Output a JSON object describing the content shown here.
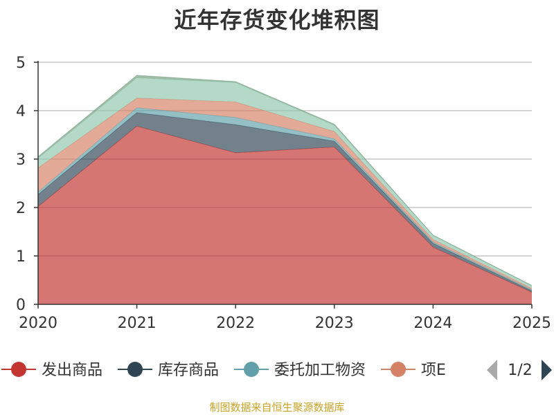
{
  "title": "近年存货变化堆积图",
  "footer": "制图数据来自恒生聚源数据库",
  "legend_page": "1/2",
  "chart_data": {
    "type": "area",
    "stacked": true,
    "title": "近年存货变化堆积图",
    "x": [
      "2020",
      "2021",
      "2022",
      "2023",
      "2024",
      "2025"
    ],
    "ylim": [
      0,
      5
    ],
    "yticks": [
      0,
      1,
      2,
      3,
      4,
      5
    ],
    "grid": true,
    "legend_position": "bottom",
    "series": [
      {
        "name": "发出商品",
        "color": "#c23531",
        "values": [
          2.02,
          3.68,
          3.13,
          3.25,
          1.18,
          0.25
        ]
      },
      {
        "name": "库存商品",
        "color": "#2f4554",
        "values": [
          0.25,
          0.28,
          0.58,
          0.12,
          0.08,
          0.03
        ]
      },
      {
        "name": "委托加工物资",
        "color": "#61a0a8",
        "values": [
          0.05,
          0.1,
          0.15,
          0.05,
          0.03,
          0.02
        ]
      },
      {
        "name": "项E",
        "color": "#d48265",
        "values": [
          0.5,
          0.2,
          0.32,
          0.15,
          0.05,
          0.03
        ]
      },
      {
        "name": "",
        "color": "#91c7ae",
        "values": [
          0.2,
          0.42,
          0.4,
          0.13,
          0.08,
          0.05
        ]
      },
      {
        "name": "",
        "color": "#749f83",
        "values": [
          0.03,
          0.05,
          0.02,
          0.02,
          0.01,
          0.01
        ]
      }
    ],
    "legend_visible": [
      "发出商品",
      "库存商品",
      "委托加工物资",
      "项E"
    ]
  }
}
